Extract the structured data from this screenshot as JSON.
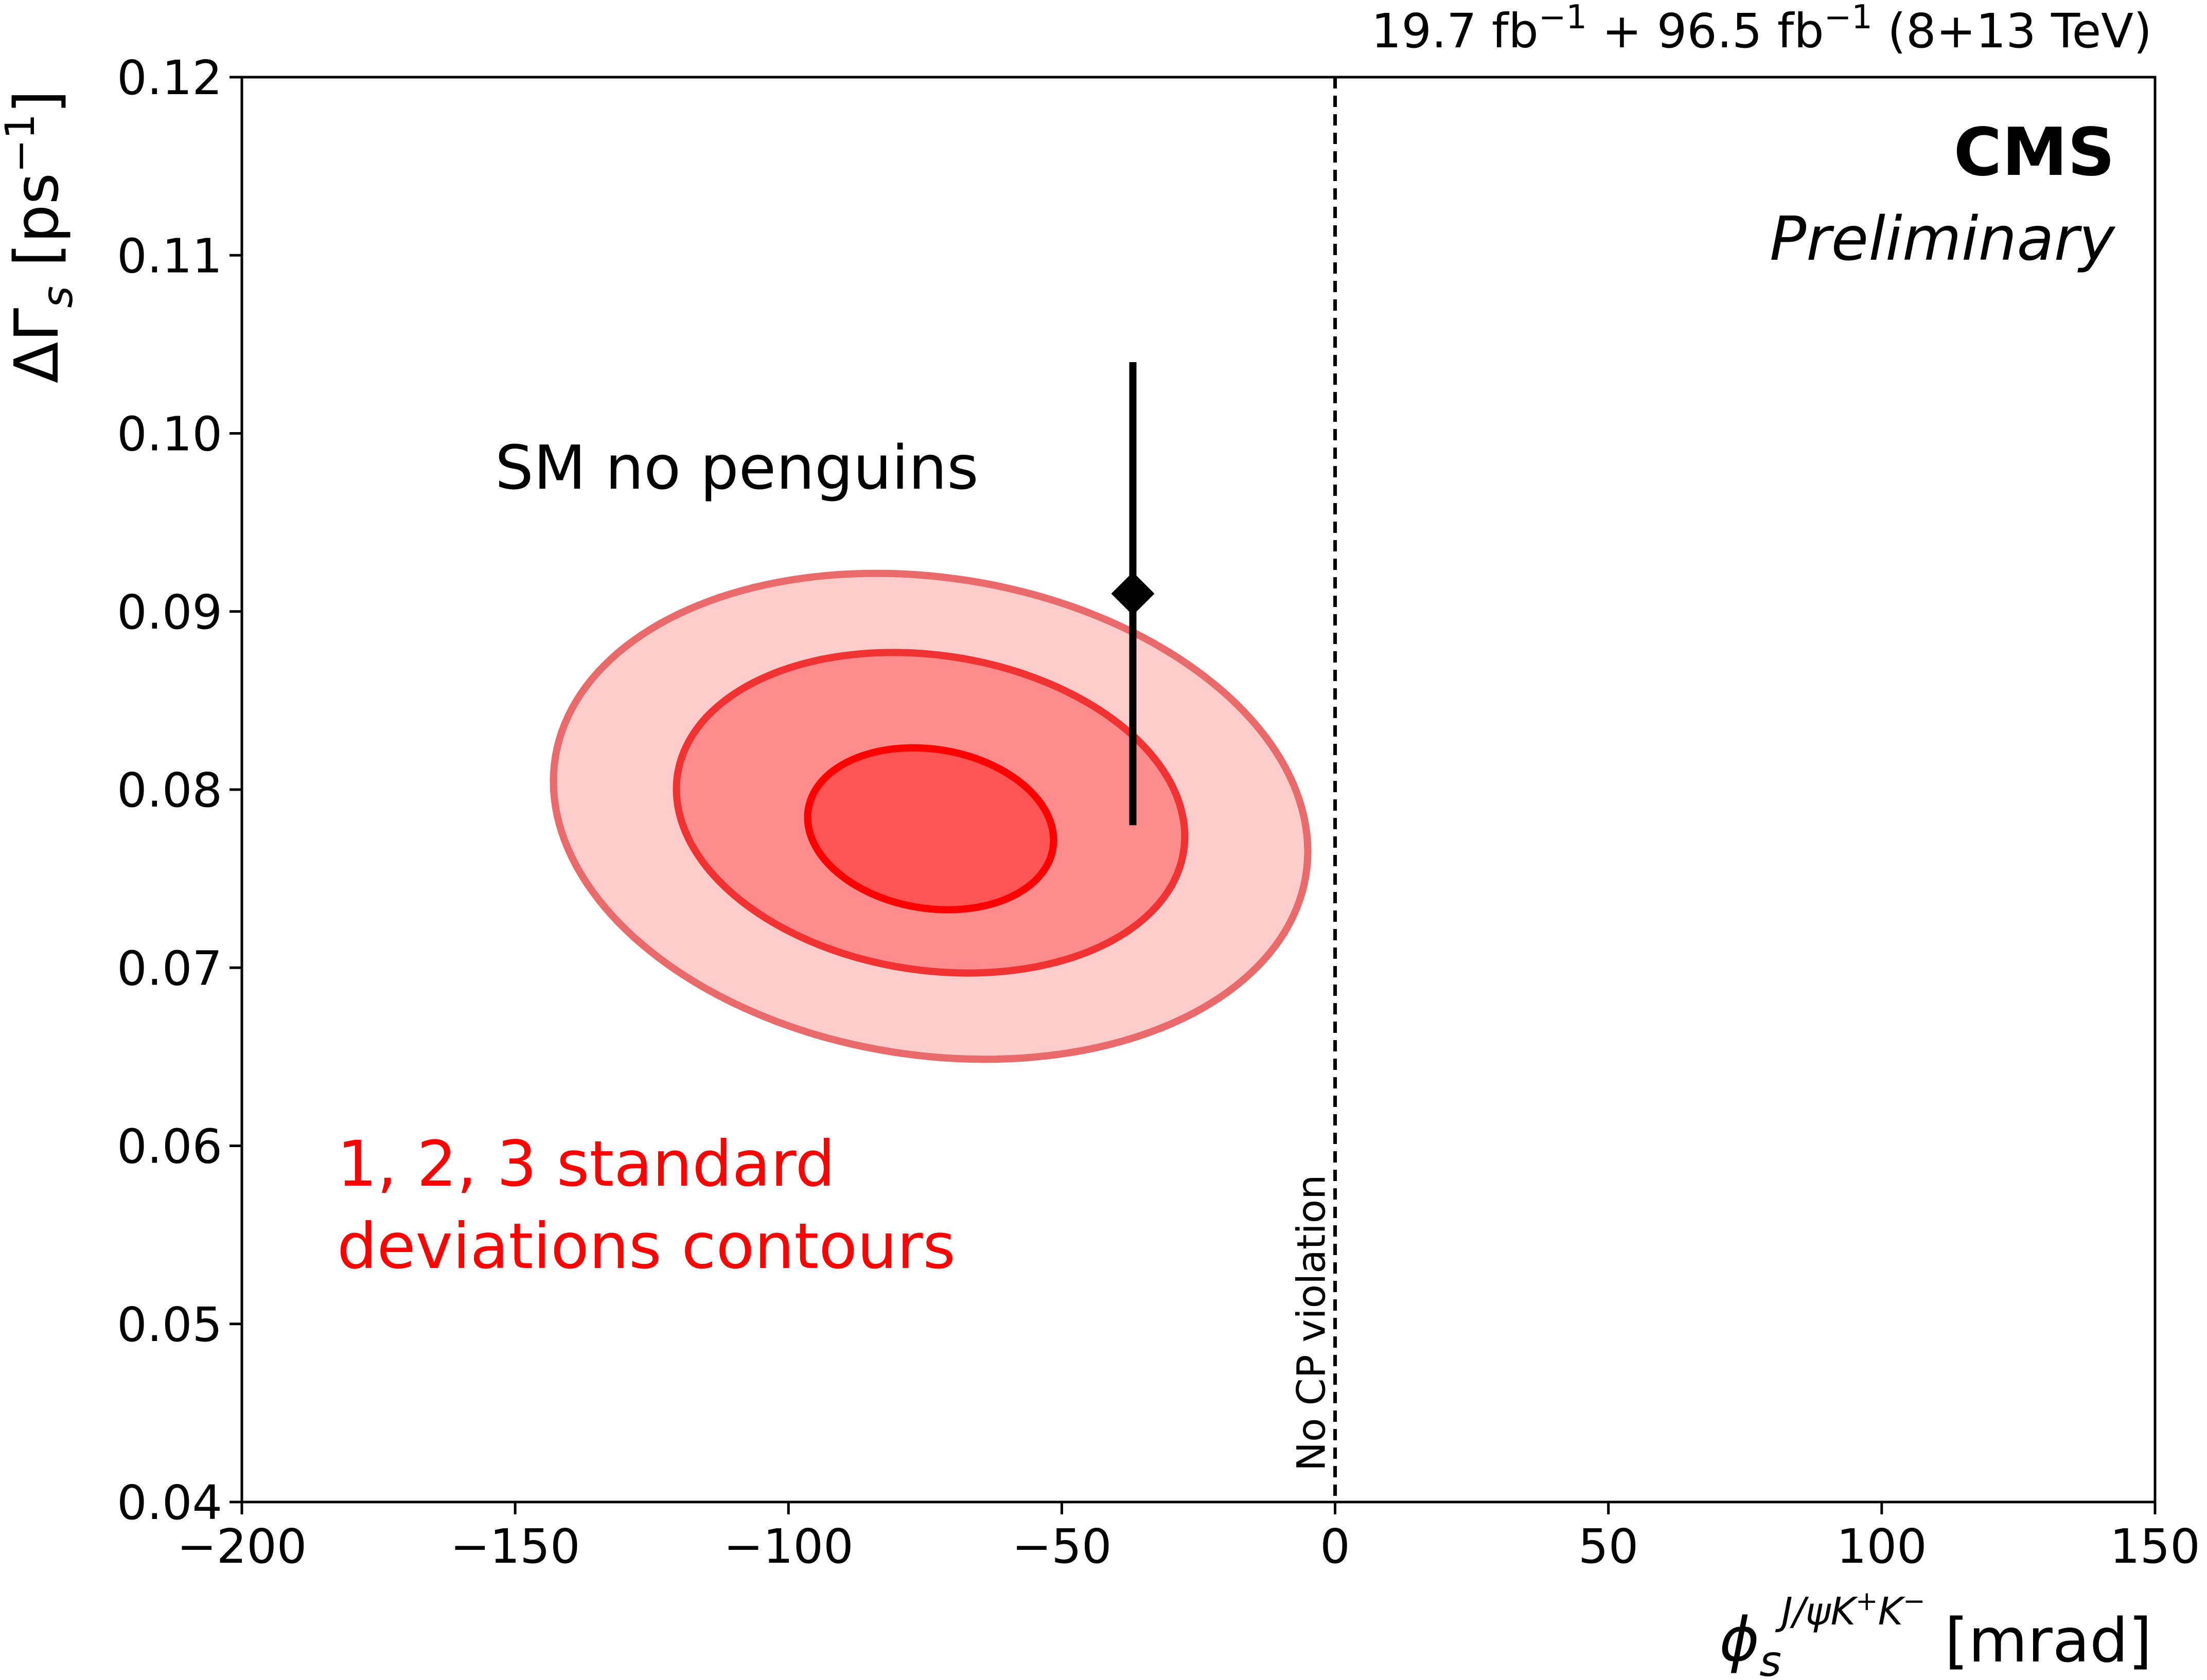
{
  "chart_data": {
    "type": "contour",
    "lumi_label": {
      "parts": [
        {
          "text": "19.7 fb",
          "sup": false
        },
        {
          "text": "−1",
          "sup": true
        },
        {
          "text": " + 96.5 fb",
          "sup": false
        },
        {
          "text": "−1",
          "sup": true
        },
        {
          "text": " (8+13 TeV)",
          "sup": false
        }
      ]
    },
    "experiment_label": "CMS",
    "status_label": "Preliminary",
    "xlabel": {
      "symbol": "ϕ",
      "sub": "s",
      "sup": "J/ψK",
      "sup_plus": "+",
      "sup_k": "K",
      "sup_minus": "−",
      "unit": " [mrad]"
    },
    "ylabel": {
      "delta": "ΔΓ",
      "sub": "s",
      "unit_open": " [ps",
      "unit_sup": "−1",
      "unit_close": "]"
    },
    "xlim": [
      -200,
      150
    ],
    "ylim": [
      0.04,
      0.12
    ],
    "x_ticks": [
      -200,
      -150,
      -100,
      -50,
      0,
      50,
      100,
      150
    ],
    "x_tick_labels": [
      "−200",
      "−150",
      "−100",
      "−50",
      "0",
      "50",
      "100",
      "150"
    ],
    "y_ticks": [
      0.04,
      0.05,
      0.06,
      0.07,
      0.08,
      0.09,
      0.1,
      0.11,
      0.12
    ],
    "y_tick_labels": [
      "0.04",
      "0.05",
      "0.06",
      "0.07",
      "0.08",
      "0.09",
      "0.10",
      "0.11",
      "0.12"
    ],
    "grid": false,
    "contours": [
      {
        "level": 3,
        "center": [
          -74,
          0.0785
        ],
        "semi_x": 69,
        "semi_y": 0.0135,
        "tilt_slope": -2.85e-05,
        "fill": "#ffcccc",
        "stroke": "#e96a6a"
      },
      {
        "level": 2,
        "center": [
          -74,
          0.0787
        ],
        "semi_x": 46.5,
        "semi_y": 0.0089,
        "tilt_slope": -2.85e-05,
        "fill": "#ff8c8c",
        "stroke": "#f03232"
      },
      {
        "level": 1,
        "center": [
          -74,
          0.0778
        ],
        "semi_x": 22.5,
        "semi_y": 0.0045,
        "tilt_slope": -2.85e-05,
        "fill": "#ff5454",
        "stroke": "#ff0000"
      }
    ],
    "sm_point": {
      "x": -37,
      "y": 0.091,
      "y_low": 0.078,
      "y_high": 0.104,
      "color": "#000000"
    },
    "sm_label": "SM no penguins",
    "contour_label_lines": [
      "1, 2, 3 standard",
      "deviations contours"
    ],
    "vline": {
      "x": 0,
      "style": "dashed",
      "label": "No CP violation"
    },
    "colors": {
      "contour_text": "#ff0000",
      "axis": "#000000"
    }
  }
}
